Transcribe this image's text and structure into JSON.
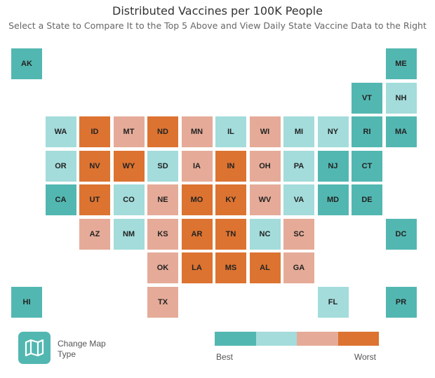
{
  "title": "Distributed Vaccines per 100K People",
  "subtitle": "Select a State to Compare It to the Top 5 Above and View Daily State Vaccine Data to the Right",
  "colors": {
    "best": "#53b7b1",
    "good": "#a3dcdb",
    "bad": "#e5ab98",
    "worst": "#dc7331"
  },
  "states": [
    {
      "code": "AK",
      "level": "best"
    },
    {
      "code": "ME",
      "level": "best"
    },
    {
      "code": "VT",
      "level": "best"
    },
    {
      "code": "NH",
      "level": "good"
    },
    {
      "code": "WA",
      "level": "good"
    },
    {
      "code": "ID",
      "level": "worst"
    },
    {
      "code": "MT",
      "level": "bad"
    },
    {
      "code": "ND",
      "level": "worst"
    },
    {
      "code": "MN",
      "level": "bad"
    },
    {
      "code": "IL",
      "level": "good"
    },
    {
      "code": "WI",
      "level": "bad"
    },
    {
      "code": "MI",
      "level": "good"
    },
    {
      "code": "NY",
      "level": "good"
    },
    {
      "code": "RI",
      "level": "best"
    },
    {
      "code": "MA",
      "level": "best"
    },
    {
      "code": "OR",
      "level": "good"
    },
    {
      "code": "NV",
      "level": "worst"
    },
    {
      "code": "WY",
      "level": "worst"
    },
    {
      "code": "SD",
      "level": "good"
    },
    {
      "code": "IA",
      "level": "bad"
    },
    {
      "code": "IN",
      "level": "worst"
    },
    {
      "code": "OH",
      "level": "bad"
    },
    {
      "code": "PA",
      "level": "good"
    },
    {
      "code": "NJ",
      "level": "best"
    },
    {
      "code": "CT",
      "level": "best"
    },
    {
      "code": "CA",
      "level": "best"
    },
    {
      "code": "UT",
      "level": "worst"
    },
    {
      "code": "CO",
      "level": "good"
    },
    {
      "code": "NE",
      "level": "bad"
    },
    {
      "code": "MO",
      "level": "worst"
    },
    {
      "code": "KY",
      "level": "worst"
    },
    {
      "code": "WV",
      "level": "bad"
    },
    {
      "code": "VA",
      "level": "good"
    },
    {
      "code": "MD",
      "level": "best"
    },
    {
      "code": "DE",
      "level": "best"
    },
    {
      "code": "AZ",
      "level": "bad"
    },
    {
      "code": "NM",
      "level": "good"
    },
    {
      "code": "KS",
      "level": "bad"
    },
    {
      "code": "AR",
      "level": "worst"
    },
    {
      "code": "TN",
      "level": "worst"
    },
    {
      "code": "NC",
      "level": "good"
    },
    {
      "code": "SC",
      "level": "bad"
    },
    {
      "code": "DC",
      "level": "best"
    },
    {
      "code": "OK",
      "level": "bad"
    },
    {
      "code": "LA",
      "level": "worst"
    },
    {
      "code": "MS",
      "level": "worst"
    },
    {
      "code": "AL",
      "level": "worst"
    },
    {
      "code": "GA",
      "level": "bad"
    },
    {
      "code": "HI",
      "level": "best"
    },
    {
      "code": "TX",
      "level": "bad"
    },
    {
      "code": "FL",
      "level": "good"
    },
    {
      "code": "PR",
      "level": "best"
    }
  ],
  "change_map": {
    "label": "Change Map Type",
    "icon": "map-icon"
  },
  "legend": {
    "levels": [
      "best",
      "good",
      "bad",
      "worst"
    ],
    "low_label": "Best",
    "high_label": "Worst"
  }
}
